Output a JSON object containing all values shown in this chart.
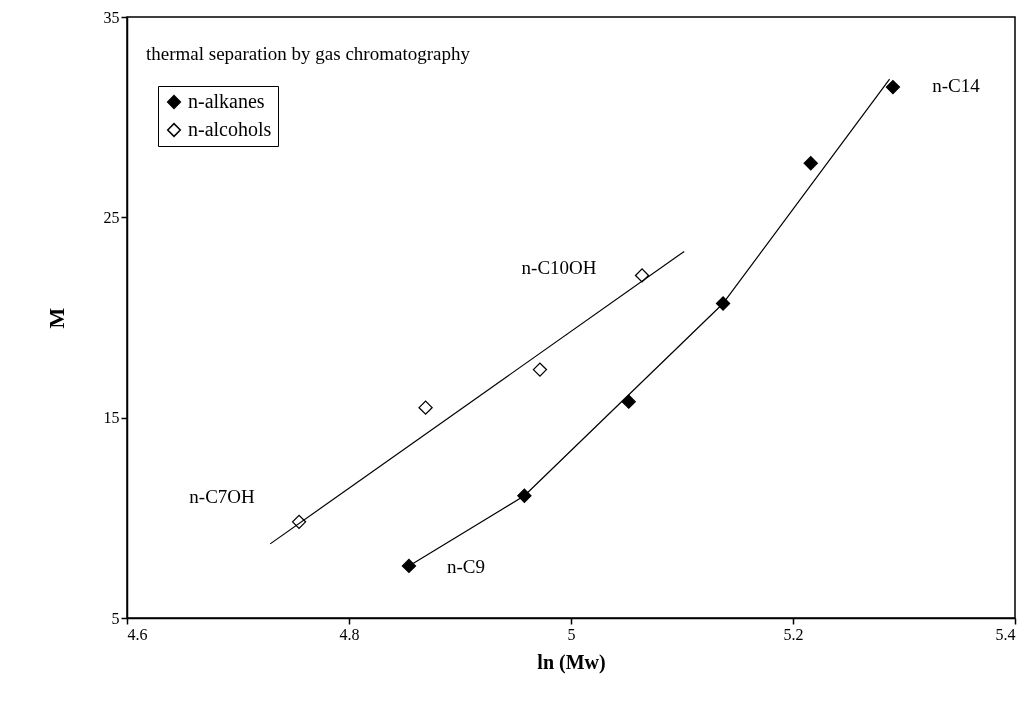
{
  "chart_data": {
    "type": "scatter",
    "title": "thermal separation by gas chromatography",
    "xlabel": "ln (Mw)",
    "ylabel": "M",
    "xlim": [
      4.6,
      5.4
    ],
    "xticks": [
      4.6,
      4.8,
      5,
      5.2,
      5.4
    ],
    "ylim": [
      5,
      35
    ],
    "yticks": [
      5,
      15,
      25,
      35
    ],
    "grid": false,
    "legend": "top left",
    "marker": "diamond",
    "series": [
      {
        "name": "n-alkanes",
        "color": "#000000",
        "x": [
          4.854,
          4.958,
          5.052,
          5.137,
          5.216,
          5.29
        ],
        "values": [
          7.6,
          11.1,
          15.8,
          20.7,
          27.7,
          31.5
        ]
      },
      {
        "name": "n-alcohols",
        "color": "#ffffff",
        "x": [
          4.755,
          4.869,
          4.972,
          5.064
        ],
        "values": [
          9.8,
          15.5,
          17.4,
          22.1
        ]
      },
      {
        "type": "line",
        "marker": "none",
        "color": "#000000",
        "x": [
          4.854,
          4.958,
          5.137,
          5.287
        ],
        "values": [
          7.6,
          11.1,
          20.7,
          31.9
        ]
      },
      {
        "type": "line",
        "marker": "none",
        "color": "#000000",
        "x": [
          4.729,
          5.102
        ],
        "values": [
          8.7,
          23.3
        ]
      }
    ],
    "annotations": [
      {
        "text": "n-C14",
        "x": 5.29,
        "y": 31.5
      },
      {
        "text": "n-C9",
        "x": 4.854,
        "y": 7.6
      },
      {
        "text": "n-C10OH",
        "x": 5.064,
        "y": 22.1
      },
      {
        "text": "n-C7OH",
        "x": 4.755,
        "y": 9.8
      }
    ]
  }
}
